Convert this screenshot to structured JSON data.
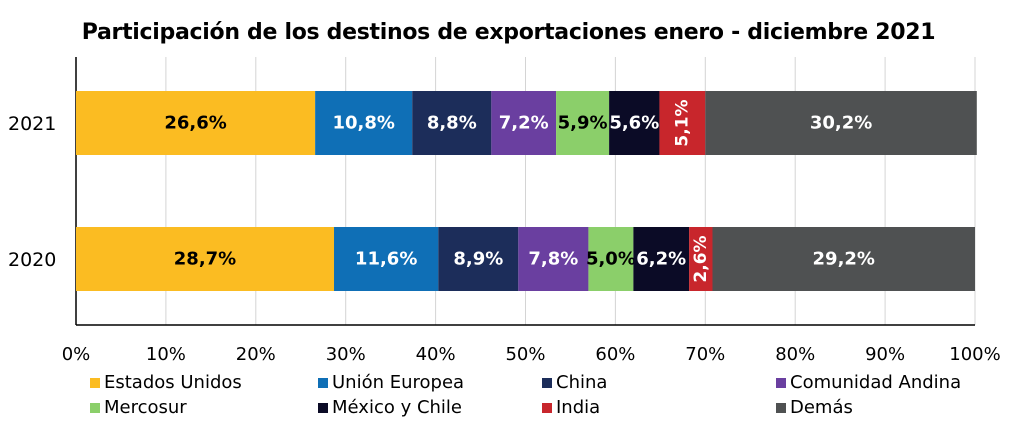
{
  "chart_data": {
    "type": "bar",
    "orientation": "horizontal",
    "stacked": true,
    "title": "Participación de los destinos de exportaciones enero - diciembre 2021",
    "categories": [
      "2021",
      "2020"
    ],
    "xlim": [
      0,
      100
    ],
    "xticks": [
      "0%",
      "10%",
      "20%",
      "30%",
      "40%",
      "50%",
      "60%",
      "70%",
      "80%",
      "90%",
      "100%"
    ],
    "grid": true,
    "legend_position": "bottom",
    "series": [
      {
        "name": "Estados Unidos",
        "color": "#FBBC22",
        "values": [
          26.6,
          28.7
        ],
        "labels": [
          "26,6%",
          "28,7%"
        ],
        "label_color": "#000000"
      },
      {
        "name": "Unión Europea",
        "color": "#0F6FB6",
        "values": [
          10.8,
          11.6
        ],
        "labels": [
          "10,8%",
          "11,6%"
        ],
        "label_color": "#FFFFFF"
      },
      {
        "name": "China",
        "color": "#1C2D5A",
        "values": [
          8.8,
          8.9
        ],
        "labels": [
          "8,8%",
          "8,9%"
        ],
        "label_color": "#FFFFFF"
      },
      {
        "name": "Comunidad Andina",
        "color": "#6A3FA0",
        "values": [
          7.2,
          7.8
        ],
        "labels": [
          "7,2%",
          "7,8%"
        ],
        "label_color": "#FFFFFF"
      },
      {
        "name": "Mercosur",
        "color": "#8BCF6A",
        "values": [
          5.9,
          5.0
        ],
        "labels": [
          "5,9%",
          "5,0%"
        ],
        "label_color": "#000000"
      },
      {
        "name": "México y Chile",
        "color": "#0B0B26",
        "values": [
          5.6,
          6.2
        ],
        "labels": [
          "5,6%",
          "6,2%"
        ],
        "label_color": "#FFFFFF"
      },
      {
        "name": "India",
        "color": "#C8262C",
        "values": [
          5.1,
          2.6
        ],
        "labels": [
          "5,1%",
          "2,6%"
        ],
        "label_color": "#FFFFFF",
        "label_rotated": true
      },
      {
        "name": "Demás",
        "color": "#4F5152",
        "values": [
          30.2,
          29.2
        ],
        "labels": [
          "30,2%",
          "29,2%"
        ],
        "label_color": "#FFFFFF"
      }
    ]
  }
}
